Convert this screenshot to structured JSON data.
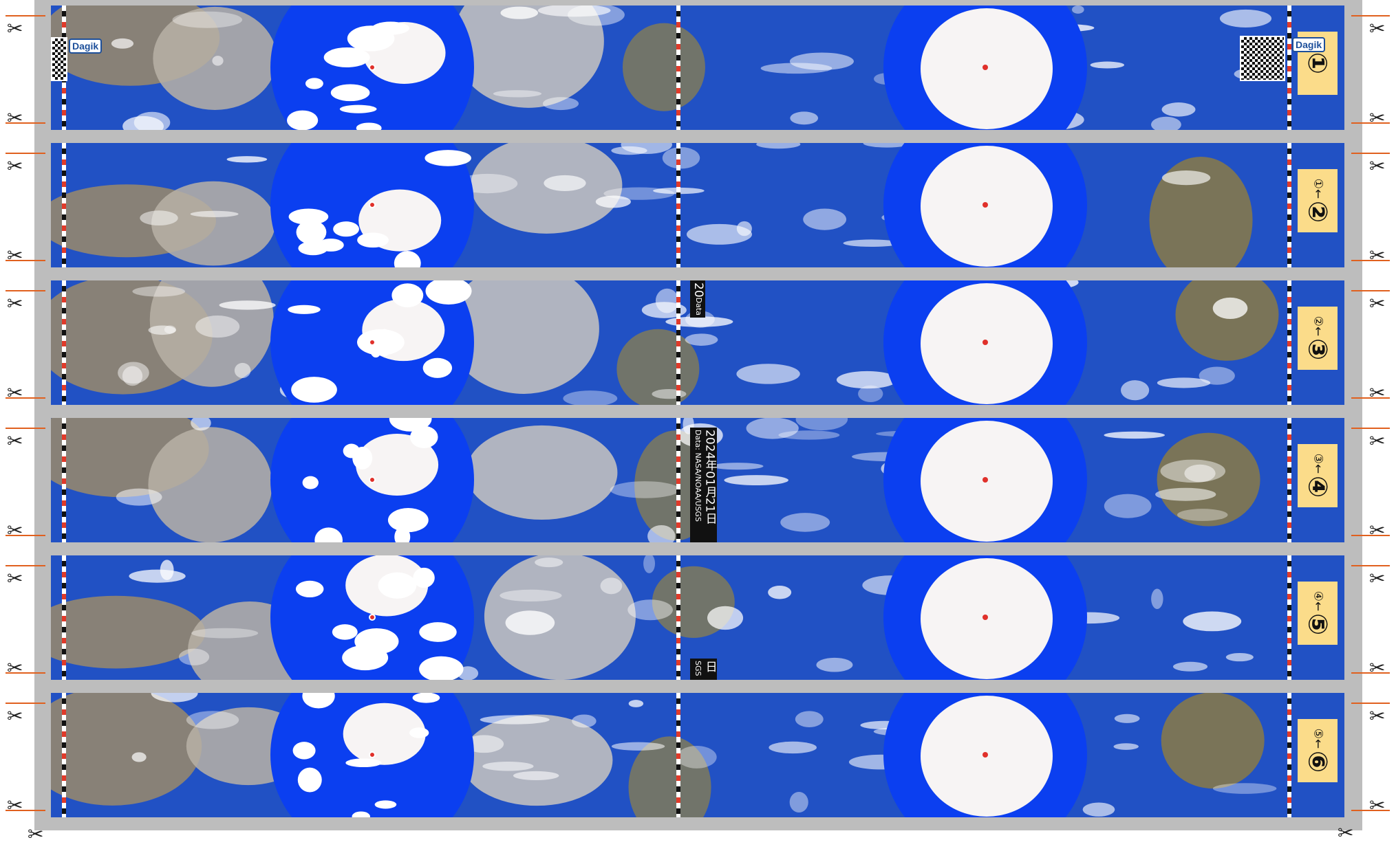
{
  "strips": [
    {
      "index": 1,
      "prev_label": "",
      "num_label": "①",
      "has_logo": true
    },
    {
      "index": 2,
      "prev_label": "①←",
      "num_label": "②",
      "has_logo": false
    },
    {
      "index": 3,
      "prev_label": "②←",
      "num_label": "③",
      "has_logo": false
    },
    {
      "index": 4,
      "prev_label": "③←",
      "num_label": "④",
      "has_logo": false
    },
    {
      "index": 5,
      "prev_label": "④←",
      "num_label": "⑤",
      "has_logo": false
    },
    {
      "index": 6,
      "prev_label": "⑤←",
      "num_label": "⑥",
      "has_logo": false
    }
  ],
  "brand": {
    "logo_text": "Dagik"
  },
  "stamp": {
    "date": "2024年01月21日",
    "source": "Data: NASA/NOAA/USGS",
    "partial_top": "20",
    "partial_top_small": "Data",
    "partial_bottom": "日",
    "partial_bottom_small": "SGS"
  },
  "icons": {
    "cut_marker": "scissors-icon"
  },
  "colors": {
    "ocean": "#2151c4",
    "polar_cap": "#0b3ff0",
    "ice": "#f7f4f4",
    "label_bg": "#fbdc8a",
    "cut_line": "#e0601e",
    "sheet": "#bdbdbd"
  }
}
